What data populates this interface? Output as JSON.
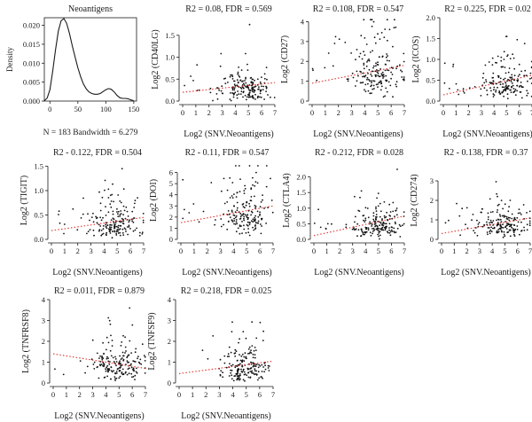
{
  "colors": {
    "axis": "#1a1a1a",
    "points": "#111111",
    "fit": "#e0302a"
  },
  "chart_data": [
    {
      "type": "line",
      "title": "Neoantigens",
      "ylabel": "Density",
      "xlabel": "N = 183 Bandwidth = 6.279",
      "xlim": [
        -10,
        155
      ],
      "ylim": [
        0,
        0.022
      ],
      "xticks": [
        0,
        50,
        100,
        150
      ],
      "xtick_labels": [
        "0",
        "50",
        "100",
        "150"
      ],
      "yticks": [
        0,
        0.005,
        0.01,
        0.015,
        0.02
      ],
      "ytick_labels": [
        "0.000",
        "0.005",
        "0.010",
        "0.015",
        "0.020"
      ],
      "x": [
        -10,
        -5,
        0,
        5,
        10,
        15,
        20,
        25,
        30,
        35,
        40,
        45,
        50,
        55,
        60,
        65,
        70,
        75,
        80,
        85,
        90,
        95,
        100,
        105,
        110,
        115,
        120,
        125,
        130,
        135,
        140,
        145,
        150
      ],
      "y": [
        0.0001,
        0.0008,
        0.003,
        0.008,
        0.0135,
        0.0185,
        0.0212,
        0.0218,
        0.0205,
        0.0178,
        0.0146,
        0.0116,
        0.0088,
        0.0064,
        0.0045,
        0.0032,
        0.0024,
        0.002,
        0.0018,
        0.0018,
        0.002,
        0.0025,
        0.003,
        0.0033,
        0.0031,
        0.0024,
        0.0015,
        0.0009,
        0.0007,
        0.0007,
        0.0006,
        0.0003,
        0.0001
      ]
    },
    {
      "type": "scatter",
      "title": "R2 = 0.08, FDR = 0.569",
      "ylabel": "Log2 (CD40LG)",
      "xlabel": "Log2 (SNV.Neoantigens)",
      "xlim": [
        0,
        7
      ],
      "ylim": [
        0,
        1.9
      ],
      "yticks": [
        0,
        0.5,
        1.0,
        1.5
      ],
      "ytick_labels": [
        "0.0",
        "0.5",
        "1.0",
        "1.5"
      ],
      "fit": {
        "x": [
          0,
          7
        ],
        "y": [
          0.2,
          0.42
        ]
      },
      "n": 180,
      "ymed": 0.28,
      "yscale": 0.32,
      "xspread": 1.0,
      "cap": 1.8
    },
    {
      "type": "scatter",
      "title": "R2 = 0.108, FDR = 0.547",
      "ylabel": "Log2 (CD27)",
      "xlabel": "Log2 (SNV.Neoantigens)",
      "xlim": [
        0,
        7
      ],
      "ylim": [
        0,
        4.2
      ],
      "yticks": [
        0,
        1,
        2,
        3,
        4
      ],
      "ytick_labels": [
        "0",
        "1",
        "2",
        "3",
        "4"
      ],
      "fit": {
        "x": [
          0,
          7
        ],
        "y": [
          0.9,
          1.8
        ]
      },
      "n": 180,
      "ymed": 1.5,
      "yscale": 0.85,
      "xspread": 1.1,
      "cap": 4.1
    },
    {
      "type": "scatter",
      "title": "R2 = 0.225, FDR = 0.02",
      "ylabel": "Log2 (ICOS)",
      "xlabel": "Log2 (SNV.Neoantigens)",
      "xlim": [
        0,
        7
      ],
      "ylim": [
        0,
        2.0
      ],
      "yticks": [
        0,
        0.5,
        1.0,
        1.5,
        2.0
      ],
      "ytick_labels": [
        "0.0",
        "0.5",
        "1.0",
        "1.5",
        "2.0"
      ],
      "fit": {
        "x": [
          0,
          7
        ],
        "y": [
          0.15,
          0.62
        ]
      },
      "n": 180,
      "ymed": 0.42,
      "yscale": 0.32,
      "xspread": 1.0,
      "cap": 1.55
    },
    {
      "type": "scatter",
      "title": "R2 - 0.122, FDR = 0.504",
      "ylabel": "Log2 (TIGIT)",
      "xlabel": "Log2 (SNV.Neoantigens)",
      "xlim": [
        0,
        7
      ],
      "ylim": [
        0,
        1.6
      ],
      "yticks": [
        0,
        0.5,
        1.0,
        1.5
      ],
      "ytick_labels": [
        "0.0",
        "0.5",
        "1.0",
        "1.5"
      ],
      "fit": {
        "x": [
          0,
          7
        ],
        "y": [
          0.18,
          0.45
        ]
      },
      "n": 180,
      "ymed": 0.35,
      "yscale": 0.28,
      "xspread": 1.0,
      "cap": 1.45
    },
    {
      "type": "scatter",
      "title": "R2 - 0.11, FDR = 0.547",
      "ylabel": "Log2 (DOI)",
      "xlabel": "Log2 (SNV.Neoantigens)",
      "xlim": [
        0,
        7
      ],
      "ylim": [
        0,
        7
      ],
      "yticks": [
        0,
        1,
        2,
        3,
        4,
        5,
        6
      ],
      "ytick_labels": [
        "0",
        "1",
        "2",
        "3",
        "4",
        "5",
        "6"
      ],
      "fit": {
        "x": [
          0,
          7
        ],
        "y": [
          1.5,
          3.0
        ]
      },
      "n": 180,
      "ymed": 2.4,
      "yscale": 1.3,
      "xspread": 1.0,
      "cap": 6.6
    },
    {
      "type": "scatter",
      "title": "R2 - 0.212, FDR = 0.028",
      "ylabel": "Log2 (CTLA4)",
      "xlabel": "Log2 (SNV.Neoantigens)",
      "xlim": [
        0,
        7
      ],
      "ylim": [
        0,
        2.5
      ],
      "yticks": [
        0,
        0.5,
        1.0,
        1.5,
        2.0
      ],
      "ytick_labels": [
        "0.0",
        "0.5",
        "1.0",
        "1.5",
        "2.0"
      ],
      "fit": {
        "x": [
          0,
          7
        ],
        "y": [
          0.12,
          0.75
        ]
      },
      "n": 180,
      "ymed": 0.45,
      "yscale": 0.35,
      "xspread": 1.0,
      "cap": 2.4
    },
    {
      "type": "scatter",
      "title": "R2 - 0.138, FDR = 0.37",
      "ylabel": "Log2 (CD274)",
      "xlabel": "Log2 (SNV.Neoantigens)",
      "xlim": [
        0,
        7
      ],
      "ylim": [
        0,
        4.0
      ],
      "yticks": [
        0,
        1,
        2,
        3
      ],
      "ytick_labels": [
        "0",
        "1",
        "2",
        "3"
      ],
      "fit": {
        "x": [
          0,
          7
        ],
        "y": [
          0.3,
          1.1
        ]
      },
      "n": 180,
      "ymed": 0.8,
      "yscale": 0.6,
      "xspread": 1.0,
      "cap": 3.8
    },
    {
      "type": "scatter",
      "title": "R2 = 0.011, FDR = 0.879",
      "ylabel": "Log2 (TNFRSF8)",
      "xlabel": "Log2 (SNV.Neoantigens)",
      "xlim": [
        0,
        7
      ],
      "ylim": [
        0,
        4.0
      ],
      "yticks": [
        0,
        1,
        2,
        3,
        4
      ],
      "ytick_labels": [
        "0",
        "1",
        "2",
        "3",
        "4"
      ],
      "fit": {
        "x": [
          0,
          7
        ],
        "y": [
          1.4,
          0.7
        ]
      },
      "n": 180,
      "ymed": 0.8,
      "yscale": 0.6,
      "xspread": 1.0,
      "cap": 3.6
    },
    {
      "type": "scatter",
      "title": "R2 = 0.218, FDR = 0.025",
      "ylabel": "Log2 (TNFSF9)",
      "xlabel": "Log2 (SNV.Neoantigens)",
      "xlim": [
        0,
        7
      ],
      "ylim": [
        0,
        4.0
      ],
      "yticks": [
        0,
        1,
        2,
        3,
        4
      ],
      "ytick_labels": [
        "0",
        "1",
        "2",
        "3",
        "4"
      ],
      "fit": {
        "x": [
          0,
          7
        ],
        "y": [
          0.45,
          1.05
        ]
      },
      "n": 180,
      "ymed": 0.8,
      "yscale": 0.6,
      "xspread": 1.0,
      "cap": 3.7
    }
  ]
}
